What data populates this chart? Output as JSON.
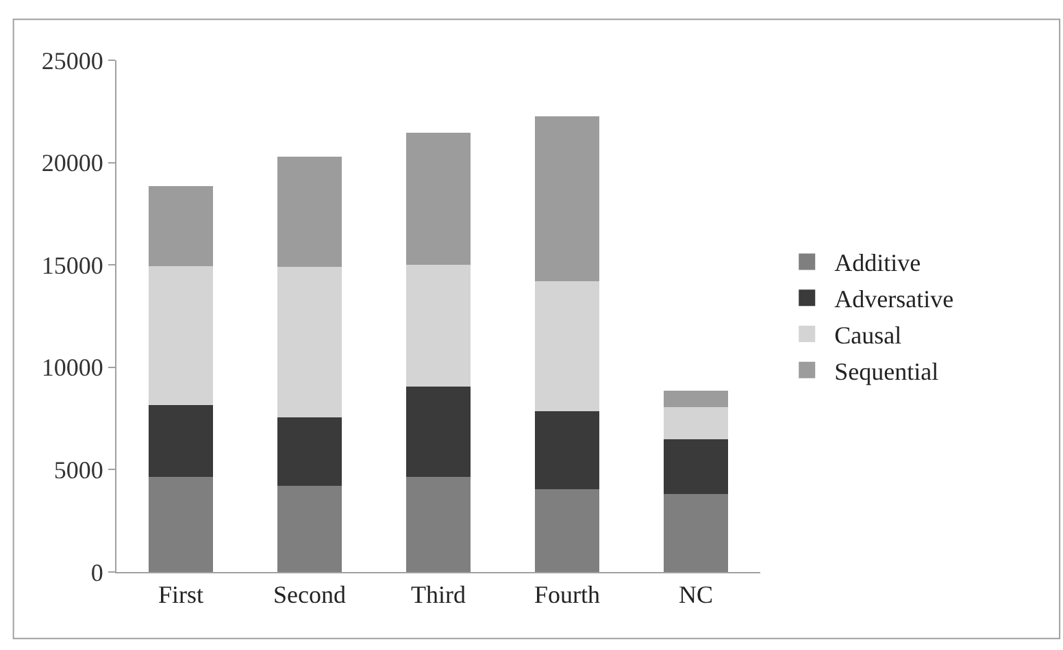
{
  "chart_data": {
    "type": "bar",
    "stacked": true,
    "categories": [
      "First",
      "Second",
      "Third",
      "Fourth",
      "NC"
    ],
    "series": [
      {
        "name": "Additive",
        "color": "#7f7f7f",
        "values": [
          4650,
          4200,
          4650,
          4050,
          3800
        ]
      },
      {
        "name": "Adversative",
        "color": "#3a3a3a",
        "values": [
          3500,
          3350,
          4400,
          3800,
          2700
        ]
      },
      {
        "name": "Causal",
        "color": "#d4d4d4",
        "values": [
          6800,
          7350,
          5950,
          6350,
          1550
        ]
      },
      {
        "name": "Sequential",
        "color": "#9c9c9c",
        "values": [
          3900,
          5400,
          6450,
          8050,
          800
        ]
      }
    ],
    "ylim": [
      0,
      25000
    ],
    "yticks": [
      0,
      5000,
      10000,
      15000,
      20000,
      25000
    ],
    "grid": false,
    "legend": "right"
  }
}
